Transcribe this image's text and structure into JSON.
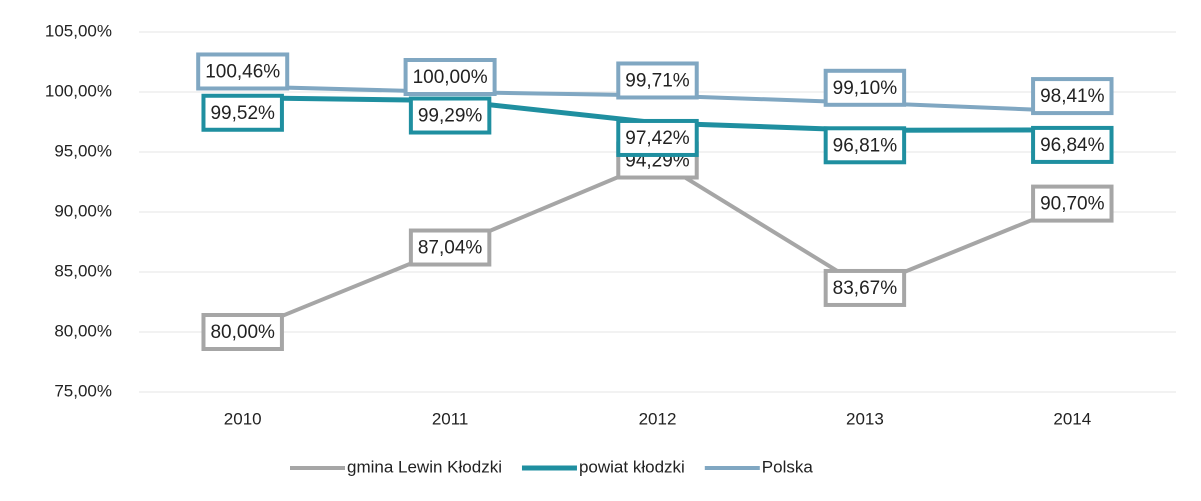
{
  "chart_data": {
    "type": "line",
    "categories": [
      "2010",
      "2011",
      "2012",
      "2013",
      "2014"
    ],
    "series": [
      {
        "name": "gmina Lewin Kłodzki",
        "color": "#a6a6a6",
        "values": [
          80.0,
          87.04,
          94.29,
          83.67,
          90.7
        ],
        "value_labels": [
          "80,00%",
          "87,04%",
          "94,29%",
          "83,67%",
          "90,70%"
        ]
      },
      {
        "name": "powiat kłodzki",
        "color": "#1f8fa0",
        "values": [
          99.52,
          99.29,
          97.42,
          96.81,
          96.84
        ],
        "value_labels": [
          "99,52%",
          "99,29%",
          "97,42%",
          "96,81%",
          "96,84%"
        ]
      },
      {
        "name": "Polska",
        "color": "#80a7c2",
        "values": [
          100.46,
          100.0,
          99.71,
          99.1,
          98.41
        ],
        "value_labels": [
          "100,46%",
          "100,00%",
          "99,71%",
          "99,10%",
          "98,41%"
        ]
      }
    ],
    "ylim": [
      75,
      105
    ],
    "yticks": [
      {
        "value": 75,
        "label": "75,00%"
      },
      {
        "value": 80,
        "label": "80,00%"
      },
      {
        "value": 85,
        "label": "85,00%"
      },
      {
        "value": 90,
        "label": "90,00%"
      },
      {
        "value": 95,
        "label": "95,00%"
      },
      {
        "value": 100,
        "label": "100,00%"
      },
      {
        "value": 105,
        "label": "105,00%"
      }
    ],
    "grid": true,
    "legend": "bottom"
  }
}
